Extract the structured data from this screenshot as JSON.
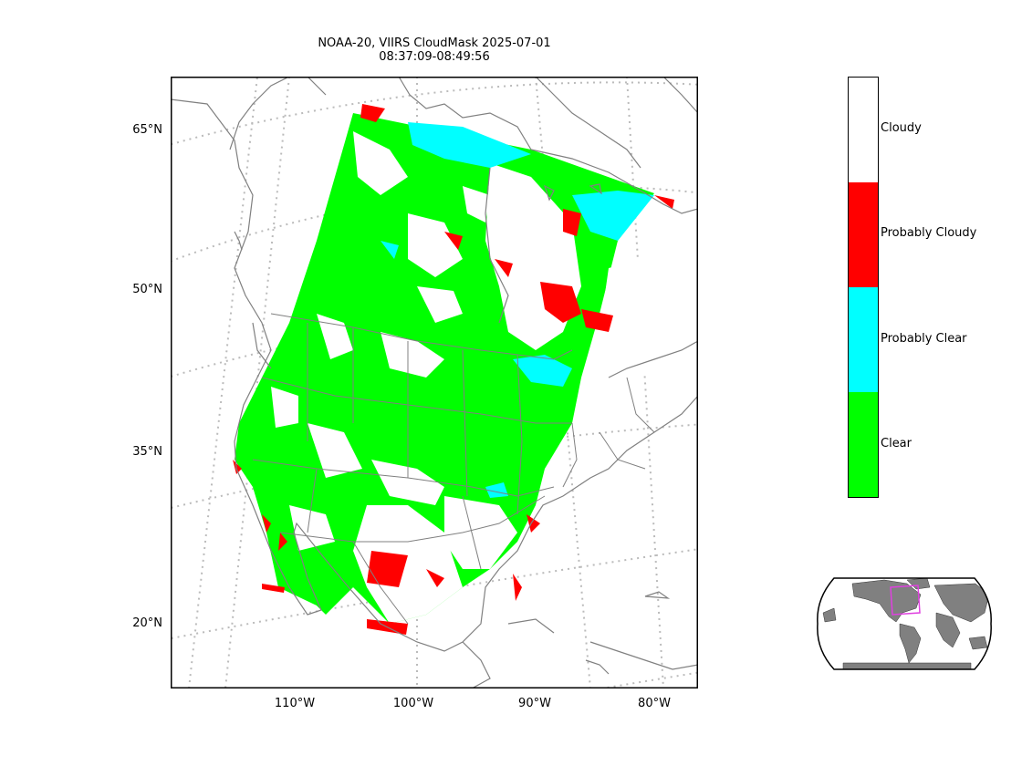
{
  "title": {
    "line1": "NOAA-20, VIIRS CloudMask 2025-07-01",
    "line2": "08:37:09-08:49:56"
  },
  "map": {
    "projection": "lambert-conformal",
    "grid": true,
    "lat_labels": [
      "65°N",
      "50°N",
      "35°N",
      "20°N"
    ],
    "lon_labels": [
      "110°W",
      "100°W",
      "90°W",
      "80°W"
    ]
  },
  "colorbar": {
    "classes": [
      {
        "label": "Cloudy",
        "color": "#ffffff"
      },
      {
        "label": "Probably Cloudy",
        "color": "#ff0000"
      },
      {
        "label": "Probably Clear",
        "color": "#00ffff"
      },
      {
        "label": "Clear",
        "color": "#00ff00"
      }
    ]
  },
  "inset": {
    "type": "globe-locator",
    "land_color": "#808080",
    "box_color": "#e040e0"
  }
}
